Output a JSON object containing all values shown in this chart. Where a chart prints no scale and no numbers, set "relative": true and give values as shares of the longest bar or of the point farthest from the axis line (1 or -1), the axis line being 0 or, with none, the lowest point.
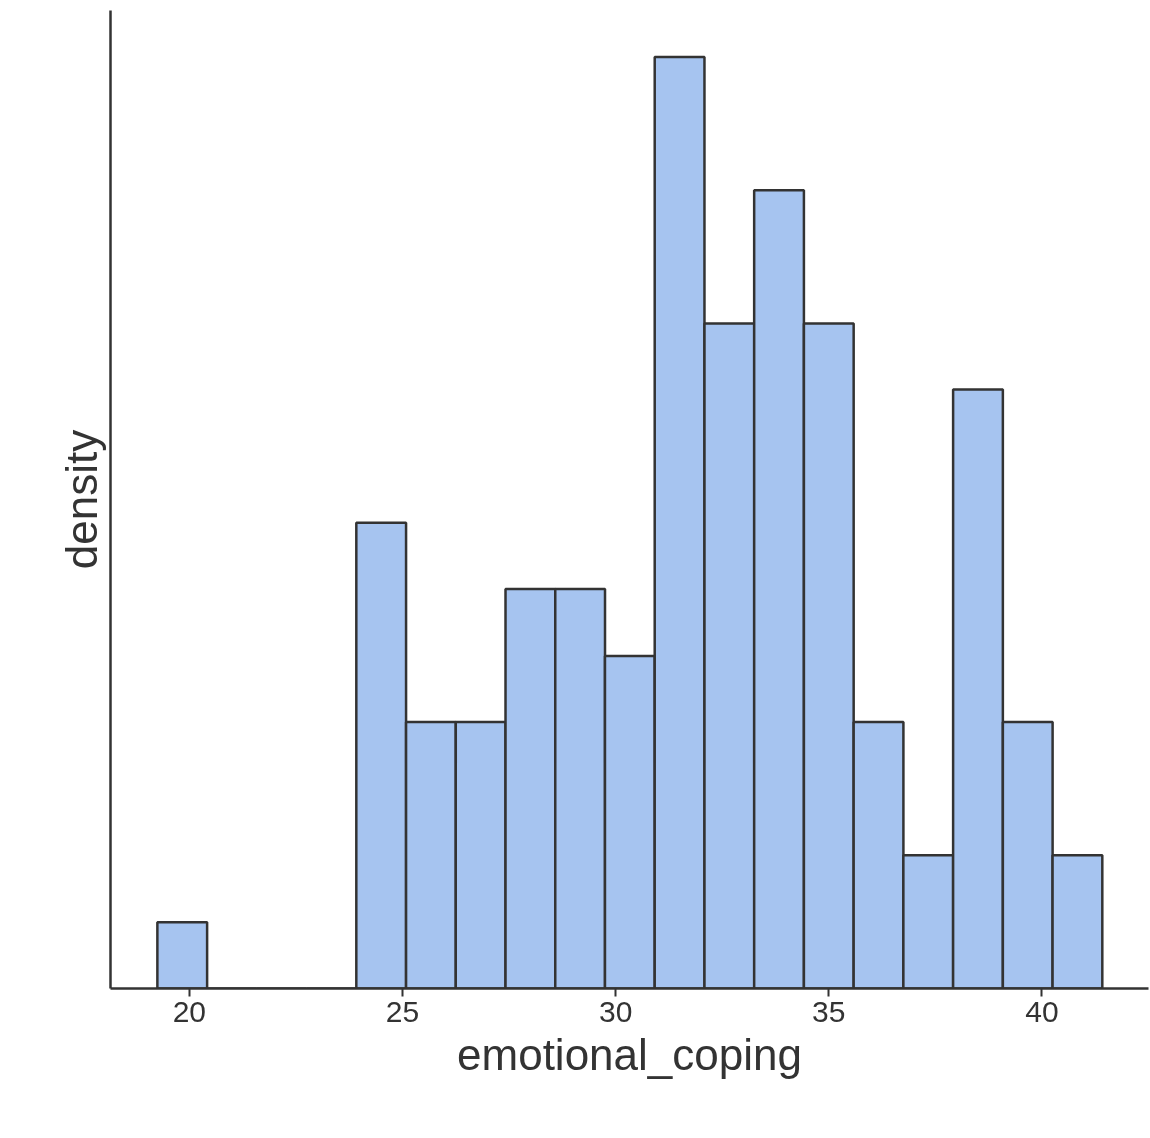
{
  "chart_data": {
    "type": "bar",
    "relative": true,
    "xlabel": "emotional_coping",
    "ylabel": "density",
    "x": [
      19.833,
      21.0,
      22.167,
      23.333,
      24.5,
      25.667,
      26.833,
      28.0,
      29.167,
      30.333,
      31.5,
      32.667,
      33.833,
      35.0,
      36.167,
      37.333,
      38.5,
      39.667,
      40.833
    ],
    "values": [
      0.071,
      0,
      0,
      0,
      0.5,
      0.286,
      0.286,
      0.429,
      0.429,
      0.357,
      1,
      0.714,
      0.857,
      0.714,
      0.286,
      0.143,
      0.643,
      0.286,
      0.143
    ],
    "color": "#a6c4f0",
    "xlim": [
      18.15,
      42.5
    ],
    "xticks": [
      20,
      25,
      30,
      35,
      40
    ],
    "grid": false
  }
}
